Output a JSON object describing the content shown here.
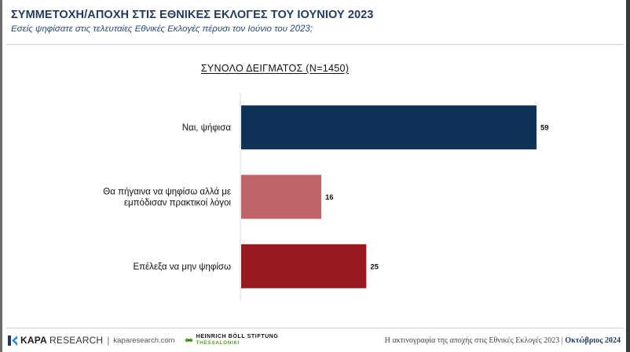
{
  "header": {
    "title": "ΣΥΜΜΕΤΟΧΗ/ΑΠΟΧΗ ΣΤΙΣ ΕΘΝΙΚΕΣ ΕΚΛΟΓΕΣ ΤΟΥ ΙΟΥΝΙΟΥ 2023",
    "subtitle": "Εσείς ψηφίσατε στις τελευταίες Εθνικές Εκλογές πέρυσι τον Ιούνιο του 2023;"
  },
  "chart_data": {
    "type": "bar",
    "orientation": "horizontal",
    "title": "ΣΥΝΟΛΟ ΔΕΙΓΜΑΤΟΣ (Ν=1450)",
    "categories": [
      "Ναι, ψήφισα",
      "Θα πήγαινα να ψηφίσω αλλά με εμπόδισαν πρακτικοί λόγοι",
      "Επέλεξα να μην ψηφίσω"
    ],
    "category_lines": [
      [
        "Ναι, ψήφισα"
      ],
      [
        "Θα πήγαινα να ψηφίσω αλλά με",
        "εμπόδισαν πρακτικοί λόγοι"
      ],
      [
        "Επέλεξα να μην ψηφίσω"
      ]
    ],
    "values": [
      59,
      16,
      25
    ],
    "colors": [
      "#0e3356",
      "#c0646a",
      "#9a1a22"
    ],
    "xlim": [
      0,
      60
    ],
    "grid": false,
    "legend": "none",
    "axis_color": "#d9d9d9",
    "label_color": "#111111"
  },
  "footer": {
    "brand_bold": "KAPA",
    "brand_light": "RESEARCH",
    "separator": "|",
    "url": "kaparesearch.com",
    "partner_line1": "HEINRICH BÖLL STIFTUNG",
    "partner_line2": "THESSALONIKI",
    "report_title": "Η ακτινογραφία της αποχής στις Εθνικές Εκλογές 2023",
    "report_sep": " | ",
    "report_date": "Οκτώβριος 2024",
    "brand_color": "#1f3a5c",
    "partner_color": "#5aa02c"
  }
}
